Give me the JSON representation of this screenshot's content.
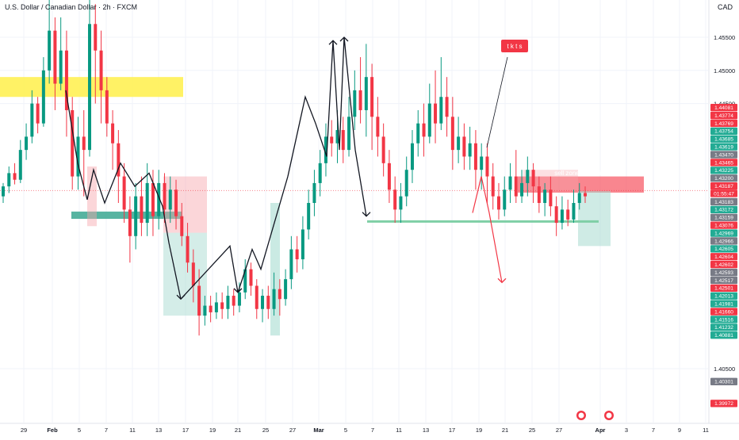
{
  "header": {
    "title": "U.S. Dollar / Canadian Dollar · 2h · FXCM",
    "currency": "CAD"
  },
  "chart_data": {
    "type": "candlestick",
    "symbol": "USDCAD",
    "timeframe": "2h",
    "y_axis": {
      "range": [
        1.3975,
        1.462
      ],
      "tick_labels": [
        "1.45500",
        "1.45000",
        "1.44500",
        "1.40500"
      ],
      "price_badges": [
        {
          "price": 1.44081,
          "color": "#f23645"
        },
        {
          "price": 1.43774,
          "color": "#f23645"
        },
        {
          "price": 1.43769,
          "color": "#f23645"
        },
        {
          "price": 1.43754,
          "color": "#22ab94"
        },
        {
          "price": 1.43685,
          "color": "#22ab94"
        },
        {
          "price": 1.43619,
          "color": "#22ab94"
        },
        {
          "price": 1.4347,
          "color": "#787b86"
        },
        {
          "price": 1.43465,
          "color": "#f23645"
        },
        {
          "price": 1.43225,
          "color": "#22ab94"
        },
        {
          "price": 1.432,
          "color": "#787b86"
        },
        {
          "price": 1.43187,
          "color": "#f23645"
        },
        {
          "price": 1.43183,
          "color": "#787b86"
        },
        {
          "price": 1.43172,
          "color": "#22ab94"
        },
        {
          "price": 1.43159,
          "color": "#787b86"
        },
        {
          "price": 1.43076,
          "color": "#f23645"
        },
        {
          "price": 1.42969,
          "color": "#22ab94"
        },
        {
          "price": 1.42966,
          "color": "#787b86"
        },
        {
          "price": 1.42605,
          "color": "#22ab94"
        },
        {
          "price": 1.42604,
          "color": "#f23645"
        },
        {
          "price": 1.42602,
          "color": "#f23645"
        },
        {
          "price": 1.42593,
          "color": "#787b86"
        },
        {
          "price": 1.42517,
          "color": "#787b86"
        },
        {
          "price": 1.42501,
          "color": "#f23645"
        },
        {
          "price": 1.42013,
          "color": "#22ab94"
        },
        {
          "price": 1.41981,
          "color": "#22ab94"
        },
        {
          "price": 1.4166,
          "color": "#f23645"
        },
        {
          "price": 1.41516,
          "color": "#22ab94"
        },
        {
          "price": 1.41232,
          "color": "#22ab94"
        },
        {
          "price": 1.40881,
          "color": "#22ab94"
        },
        {
          "price": 1.40301,
          "color": "#787b86"
        },
        {
          "price": 1.39972,
          "color": "#f23645"
        }
      ],
      "countdown": "01:55:47",
      "current_price": 1.43187
    },
    "x_axis": {
      "tick_labels": [
        "29",
        "Feb",
        "5",
        "7",
        "11",
        "13",
        "17",
        "19",
        "21",
        "25",
        "27",
        "Mar",
        "5",
        "7",
        "11",
        "13",
        "17",
        "19",
        "21",
        "25",
        "27",
        "Apr",
        "3",
        "7",
        "9",
        "11"
      ]
    },
    "candles": [
      [
        1.431,
        1.4325,
        1.43,
        1.433
      ],
      [
        1.4325,
        1.4345,
        1.4315,
        1.4355
      ],
      [
        1.4345,
        1.4335,
        1.4328,
        1.436
      ],
      [
        1.4335,
        1.438,
        1.433,
        1.4395
      ],
      [
        1.438,
        1.44,
        1.4365,
        1.442
      ],
      [
        1.44,
        1.445,
        1.439,
        1.447
      ],
      [
        1.445,
        1.442,
        1.4405,
        1.446
      ],
      [
        1.442,
        1.45,
        1.4415,
        1.452
      ],
      [
        1.45,
        1.456,
        1.448,
        1.462
      ],
      [
        1.456,
        1.448,
        1.444,
        1.458
      ],
      [
        1.448,
        1.453,
        1.447,
        1.458
      ],
      [
        1.453,
        1.444,
        1.44,
        1.456
      ],
      [
        1.444,
        1.434,
        1.432,
        1.446
      ],
      [
        1.434,
        1.44,
        1.432,
        1.443
      ],
      [
        1.44,
        1.438,
        1.431,
        1.444
      ],
      [
        1.438,
        1.457,
        1.437,
        1.461
      ],
      [
        1.457,
        1.453,
        1.445,
        1.46
      ],
      [
        1.453,
        1.447,
        1.442,
        1.456
      ],
      [
        1.447,
        1.442,
        1.44,
        1.449
      ],
      [
        1.442,
        1.439,
        1.435,
        1.444
      ],
      [
        1.439,
        1.434,
        1.43,
        1.441
      ],
      [
        1.434,
        1.429,
        1.427,
        1.436
      ],
      [
        1.429,
        1.425,
        1.421,
        1.431
      ],
      [
        1.425,
        1.431,
        1.423,
        1.433
      ],
      [
        1.431,
        1.427,
        1.425,
        1.434
      ],
      [
        1.427,
        1.433,
        1.425,
        1.436
      ],
      [
        1.433,
        1.428,
        1.425,
        1.435
      ],
      [
        1.428,
        1.433,
        1.426,
        1.435
      ],
      [
        1.433,
        1.429,
        1.427,
        1.4345
      ],
      [
        1.429,
        1.432,
        1.427,
        1.434
      ],
      [
        1.432,
        1.428,
        1.426,
        1.4335
      ],
      [
        1.428,
        1.425,
        1.4235,
        1.43
      ],
      [
        1.425,
        1.421,
        1.4195,
        1.427
      ],
      [
        1.421,
        1.4175,
        1.415,
        1.423
      ],
      [
        1.4175,
        1.413,
        1.41,
        1.42
      ],
      [
        1.413,
        1.4145,
        1.4115,
        1.416
      ],
      [
        1.4145,
        1.4135,
        1.412,
        1.416
      ],
      [
        1.4135,
        1.415,
        1.4125,
        1.4165
      ],
      [
        1.415,
        1.414,
        1.4125,
        1.4165
      ],
      [
        1.414,
        1.416,
        1.4125,
        1.4175
      ],
      [
        1.416,
        1.4145,
        1.413,
        1.417
      ],
      [
        1.4145,
        1.4165,
        1.4135,
        1.418
      ],
      [
        1.4165,
        1.42,
        1.4155,
        1.4215
      ],
      [
        1.42,
        1.4175,
        1.416,
        1.421
      ],
      [
        1.4175,
        1.414,
        1.4125,
        1.4185
      ],
      [
        1.414,
        1.416,
        1.412,
        1.417
      ],
      [
        1.416,
        1.414,
        1.4125,
        1.4175
      ],
      [
        1.414,
        1.417,
        1.413,
        1.4195
      ],
      [
        1.417,
        1.4155,
        1.413,
        1.4185
      ],
      [
        1.4155,
        1.4185,
        1.4145,
        1.42
      ],
      [
        1.4185,
        1.423,
        1.417,
        1.425
      ],
      [
        1.423,
        1.4215,
        1.4195,
        1.425
      ],
      [
        1.4215,
        1.426,
        1.42,
        1.428
      ],
      [
        1.426,
        1.43,
        1.4245,
        1.432
      ],
      [
        1.43,
        1.433,
        1.428,
        1.435
      ],
      [
        1.433,
        1.436,
        1.431,
        1.438
      ],
      [
        1.436,
        1.44,
        1.434,
        1.442
      ],
      [
        1.44,
        1.439,
        1.437,
        1.4425
      ],
      [
        1.439,
        1.441,
        1.436,
        1.444
      ],
      [
        1.441,
        1.438,
        1.436,
        1.443
      ],
      [
        1.438,
        1.443,
        1.437,
        1.446
      ],
      [
        1.443,
        1.447,
        1.441,
        1.45
      ],
      [
        1.447,
        1.444,
        1.442,
        1.452
      ],
      [
        1.444,
        1.449,
        1.44,
        1.454
      ],
      [
        1.449,
        1.443,
        1.438,
        1.451
      ],
      [
        1.443,
        1.44,
        1.437,
        1.446
      ],
      [
        1.44,
        1.436,
        1.434,
        1.442
      ],
      [
        1.436,
        1.432,
        1.43,
        1.438
      ],
      [
        1.432,
        1.429,
        1.427,
        1.434
      ],
      [
        1.429,
        1.431,
        1.427,
        1.433
      ],
      [
        1.431,
        1.435,
        1.4295,
        1.437
      ],
      [
        1.435,
        1.439,
        1.433,
        1.441
      ],
      [
        1.439,
        1.442,
        1.437,
        1.444
      ],
      [
        1.442,
        1.44,
        1.437,
        1.445
      ],
      [
        1.44,
        1.445,
        1.439,
        1.448
      ],
      [
        1.445,
        1.442,
        1.439,
        1.45
      ],
      [
        1.442,
        1.446,
        1.441,
        1.452
      ],
      [
        1.446,
        1.443,
        1.44,
        1.449
      ],
      [
        1.443,
        1.438,
        1.435,
        1.446
      ],
      [
        1.438,
        1.44,
        1.436,
        1.443
      ],
      [
        1.44,
        1.437,
        1.435,
        1.442
      ],
      [
        1.437,
        1.439,
        1.435,
        1.4415
      ],
      [
        1.439,
        1.435,
        1.432,
        1.441
      ],
      [
        1.435,
        1.437,
        1.432,
        1.439
      ],
      [
        1.437,
        1.434,
        1.43,
        1.439
      ],
      [
        1.434,
        1.431,
        1.429,
        1.436
      ],
      [
        1.431,
        1.429,
        1.4275,
        1.433
      ],
      [
        1.429,
        1.432,
        1.428,
        1.434
      ],
      [
        1.432,
        1.434,
        1.43,
        1.436
      ],
      [
        1.434,
        1.431,
        1.43,
        1.438
      ],
      [
        1.431,
        1.433,
        1.43,
        1.435
      ],
      [
        1.433,
        1.435,
        1.431,
        1.437
      ],
      [
        1.435,
        1.4325,
        1.43,
        1.436
      ],
      [
        1.4325,
        1.43,
        1.4285,
        1.434
      ],
      [
        1.43,
        1.432,
        1.428,
        1.433
      ],
      [
        1.432,
        1.4295,
        1.428,
        1.434
      ],
      [
        1.4295,
        1.427,
        1.425,
        1.431
      ],
      [
        1.427,
        1.429,
        1.426,
        1.431
      ],
      [
        1.429,
        1.4275,
        1.4265,
        1.4305
      ],
      [
        1.4275,
        1.43,
        1.427,
        1.432
      ],
      [
        1.43,
        1.4315,
        1.429,
        1.433
      ],
      [
        1.4315,
        1.431,
        1.43,
        1.4325
      ]
    ],
    "annotations": [
      {
        "type": "text_label",
        "text": "sell zone 50% Fibo",
        "color": "#f23645"
      },
      {
        "type": "text_badge",
        "text": "t k t s",
        "color": "#f23645"
      }
    ]
  }
}
